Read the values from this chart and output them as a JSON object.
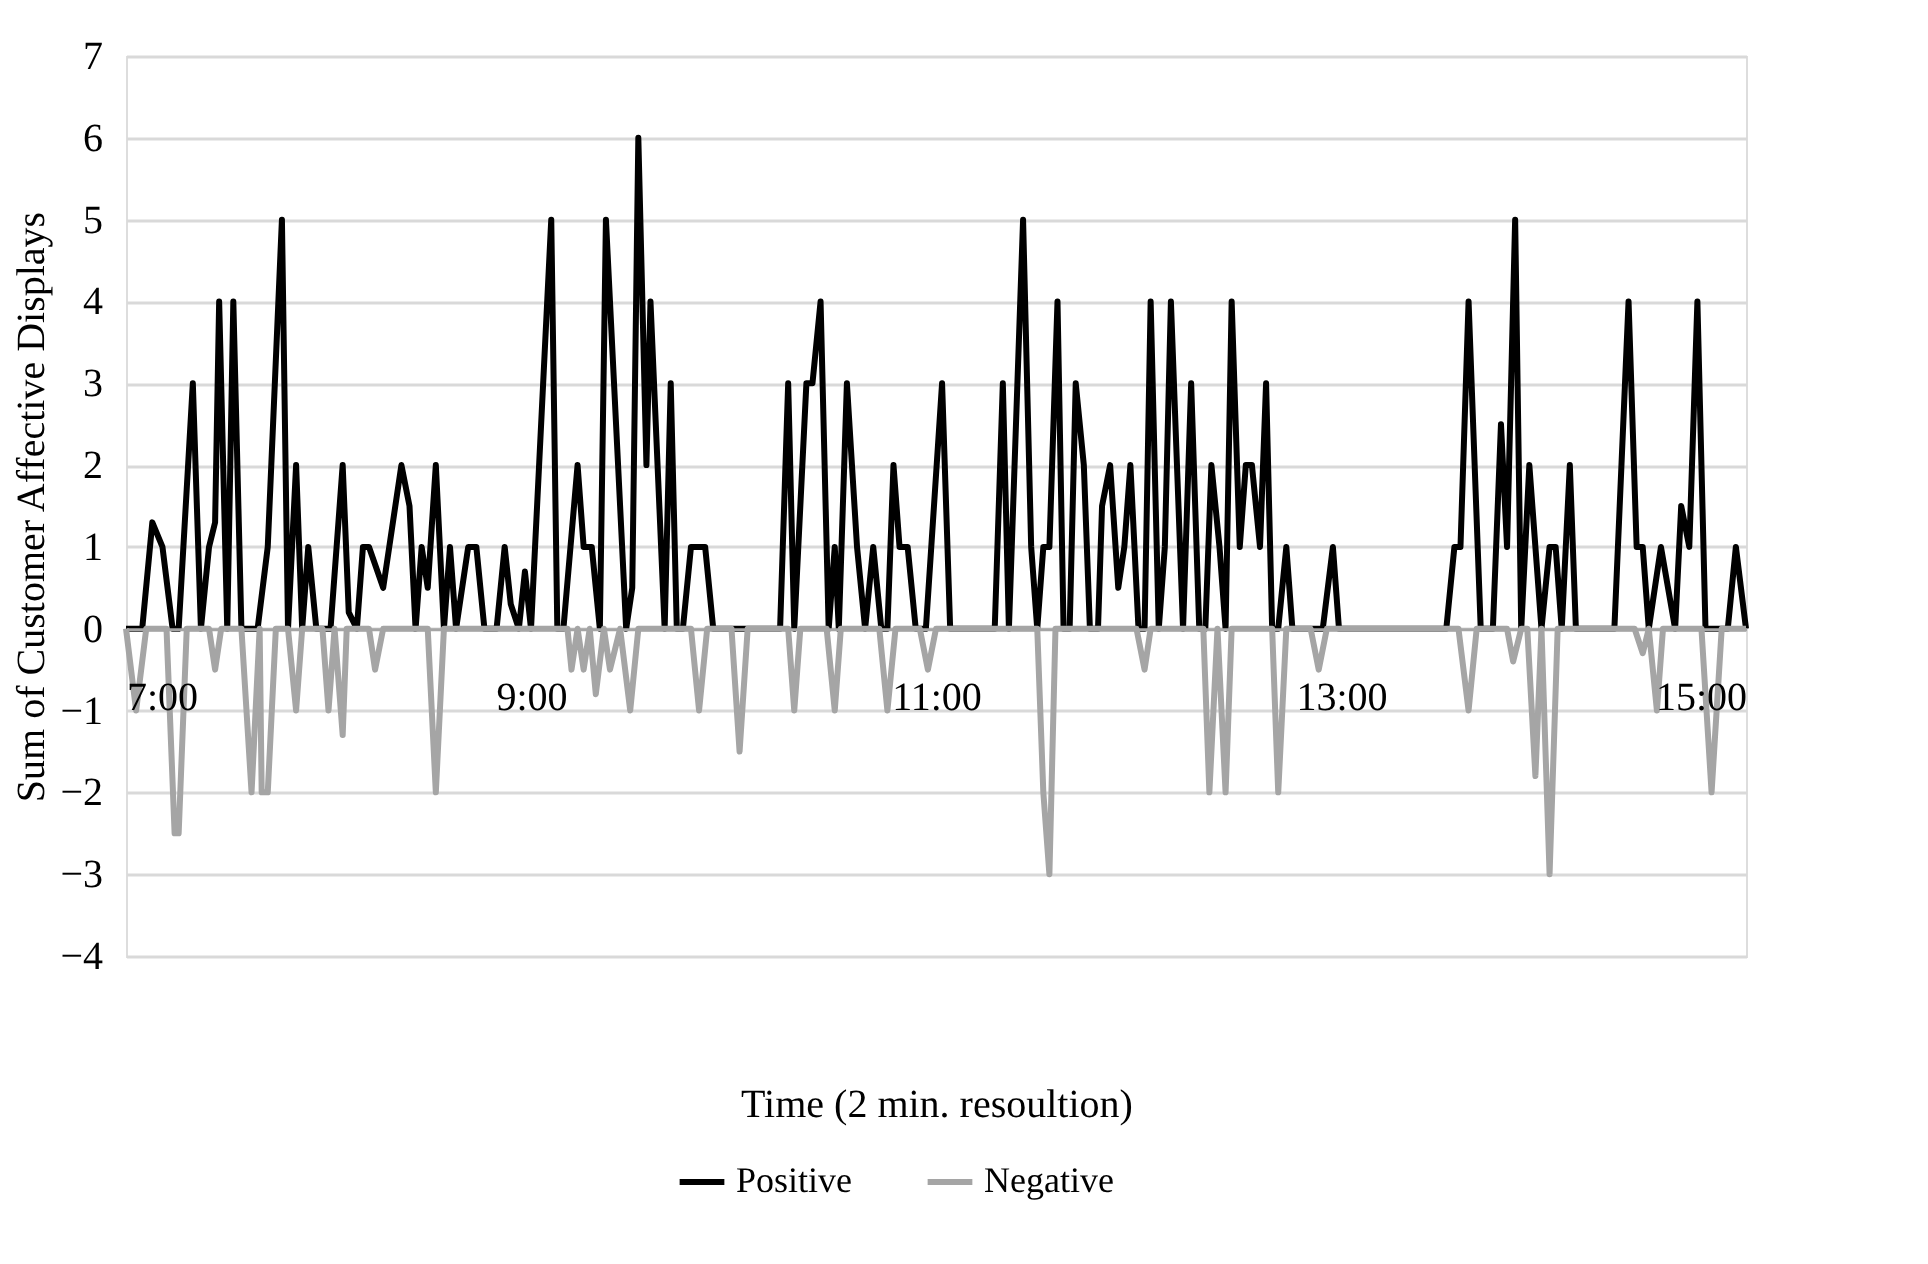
{
  "chart_data": {
    "type": "line",
    "xlabel": "Time (2 min. resoultion)",
    "ylabel": "Sum of Customer Affective Displays",
    "xlim": [
      7,
      15
    ],
    "xticks": [
      {
        "value": 7,
        "label": "7:00"
      },
      {
        "value": 9,
        "label": "9:00"
      },
      {
        "value": 11,
        "label": "11:00"
      },
      {
        "value": 13,
        "label": "13:00"
      },
      {
        "value": 15,
        "label": "15:00"
      }
    ],
    "ylim": [
      -4,
      7
    ],
    "yticks": [
      -4,
      -3,
      -2,
      -1,
      0,
      1,
      2,
      3,
      4,
      5,
      6,
      7
    ],
    "grid": "y",
    "legend": "bottom",
    "line_style": "solid",
    "marker": "none",
    "series": [
      {
        "name": "Positive",
        "color": "#000000",
        "x": [
          7.0,
          7.08,
          7.13,
          7.18,
          7.23,
          7.26,
          7.33,
          7.37,
          7.41,
          7.44,
          7.46,
          7.5,
          7.53,
          7.57,
          7.65,
          7.7,
          7.77,
          7.8,
          7.84,
          7.87,
          7.9,
          7.94,
          8.01,
          8.07,
          8.1,
          8.14,
          8.17,
          8.2,
          8.27,
          8.36,
          8.4,
          8.43,
          8.46,
          8.49,
          8.53,
          8.57,
          8.6,
          8.63,
          8.69,
          8.73,
          8.77,
          8.83,
          8.87,
          8.9,
          8.94,
          8.97,
          9.0,
          9.1,
          9.13,
          9.16,
          9.23,
          9.26,
          9.3,
          9.34,
          9.37,
          9.47,
          9.5,
          9.53,
          9.57,
          9.59,
          9.66,
          9.69,
          9.72,
          9.75,
          9.79,
          9.86,
          9.9,
          10.23,
          10.27,
          10.3,
          10.36,
          10.39,
          10.43,
          10.47,
          10.5,
          10.52,
          10.56,
          10.61,
          10.65,
          10.69,
          10.73,
          10.76,
          10.79,
          10.82,
          10.86,
          10.9,
          10.95,
          11.03,
          11.07,
          11.29,
          11.33,
          11.36,
          11.43,
          11.47,
          11.5,
          11.53,
          11.56,
          11.6,
          11.63,
          11.66,
          11.69,
          11.73,
          11.76,
          11.8,
          11.82,
          11.86,
          11.9,
          11.93,
          11.96,
          12.0,
          12.03,
          12.06,
          12.1,
          12.13,
          12.16,
          12.22,
          12.26,
          12.3,
          12.33,
          12.36,
          12.4,
          12.43,
          12.46,
          12.5,
          12.53,
          12.56,
          12.6,
          12.63,
          12.66,
          12.69,
          12.73,
          12.76,
          12.91,
          12.96,
          12.99,
          13.52,
          13.56,
          13.59,
          13.63,
          13.69,
          13.75,
          13.79,
          13.82,
          13.86,
          13.89,
          13.93,
          13.99,
          14.03,
          14.06,
          14.09,
          14.13,
          14.16,
          14.35,
          14.42,
          14.46,
          14.49,
          14.52,
          14.58,
          14.65,
          14.68,
          14.72,
          14.76,
          14.8,
          14.91,
          14.95,
          15.0
        ],
        "values": [
          0,
          0,
          1.3,
          1,
          0,
          0,
          3,
          0,
          1,
          1.3,
          4,
          0,
          4,
          0,
          0,
          1,
          5,
          0,
          2,
          0,
          1,
          0,
          0,
          2,
          0.2,
          0,
          1,
          1,
          0.5,
          2,
          1.5,
          0,
          1,
          0.5,
          2,
          0,
          1,
          0,
          1,
          1,
          0,
          0,
          1,
          0.3,
          0,
          0.7,
          0,
          5,
          0,
          0,
          2,
          1,
          1,
          0,
          5,
          0,
          0.5,
          6,
          2,
          4,
          0,
          3,
          0,
          0,
          1,
          1,
          0,
          0,
          3,
          0,
          3,
          3,
          4,
          0,
          1,
          0,
          3,
          1,
          0,
          1,
          0,
          0,
          2,
          1,
          1,
          0,
          0,
          3,
          0,
          0,
          3,
          0,
          5,
          1,
          0,
          1,
          1,
          4,
          0,
          0,
          3,
          2,
          0,
          0,
          1.5,
          2,
          0.5,
          1,
          2,
          0,
          0,
          4,
          0,
          1,
          4,
          0,
          3,
          0,
          0,
          2,
          1,
          0,
          4,
          1,
          2,
          2,
          1,
          3,
          0,
          0,
          1,
          0,
          0,
          1,
          0,
          0,
          1,
          1,
          4,
          0,
          0,
          2.5,
          1,
          5,
          0,
          2,
          0,
          1,
          1,
          0,
          2,
          0,
          0,
          4,
          1,
          1,
          0,
          1,
          0,
          1.5,
          1,
          4,
          0,
          0,
          1,
          0
        ]
      },
      {
        "name": "Negative",
        "color": "#a5a5a5",
        "x": [
          7.0,
          7.05,
          7.1,
          7.2,
          7.24,
          7.26,
          7.3,
          7.41,
          7.44,
          7.47,
          7.57,
          7.62,
          7.66,
          7.67,
          7.7,
          7.74,
          7.8,
          7.84,
          7.87,
          7.97,
          8.0,
          8.03,
          8.07,
          8.09,
          8.2,
          8.23,
          8.27,
          8.49,
          8.53,
          8.57,
          9.18,
          9.2,
          9.23,
          9.26,
          9.29,
          9.32,
          9.36,
          9.39,
          9.44,
          9.49,
          9.53,
          9.79,
          9.83,
          9.87,
          9.99,
          10.03,
          10.07,
          10.27,
          10.3,
          10.33,
          10.46,
          10.5,
          10.53,
          10.72,
          10.76,
          10.8,
          10.92,
          10.96,
          11.0,
          11.5,
          11.53,
          11.56,
          11.59,
          11.99,
          12.03,
          12.06,
          12.32,
          12.35,
          12.39,
          12.43,
          12.46,
          12.66,
          12.69,
          12.73,
          12.85,
          12.89,
          12.93,
          13.58,
          13.63,
          13.67,
          13.82,
          13.85,
          13.89,
          13.92,
          13.96,
          13.99,
          14.03,
          14.07,
          14.45,
          14.49,
          14.52,
          14.56,
          14.59,
          14.78,
          14.83,
          14.88,
          15.0
        ],
        "values": [
          0,
          -1,
          0,
          0,
          -2.5,
          -2.5,
          0,
          0,
          -0.5,
          0,
          0,
          -2,
          0,
          -2,
          -2,
          0,
          0,
          -1,
          0,
          0,
          -1,
          0,
          -1.3,
          0,
          0,
          -0.5,
          0,
          0,
          -2,
          0,
          0,
          -0.5,
          0,
          -0.5,
          0,
          -0.8,
          0,
          -0.5,
          0,
          -1,
          0,
          0,
          -1,
          0,
          0,
          -1.5,
          0,
          0,
          -1,
          0,
          0,
          -1,
          0,
          0,
          -1,
          0,
          0,
          -0.5,
          0,
          0,
          -2,
          -3,
          0,
          0,
          -0.5,
          0,
          0,
          -2,
          0,
          -2,
          0,
          0,
          -2,
          0,
          0,
          -0.5,
          0,
          0,
          -1,
          0,
          0,
          -0.4,
          0,
          0,
          -1.8,
          0,
          -3,
          0,
          0,
          -0.3,
          0,
          -1,
          0,
          0,
          -2,
          0,
          0
        ]
      }
    ]
  }
}
